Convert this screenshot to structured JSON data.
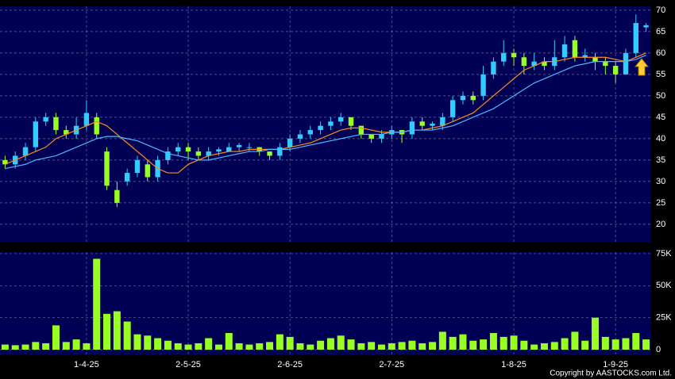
{
  "chart_data": {
    "type": "candlestick",
    "x": [
      null,
      null,
      null,
      null,
      null,
      null,
      null,
      null,
      "1-4-25",
      null,
      null,
      null,
      null,
      null,
      null,
      null,
      null,
      null,
      "2-5-25",
      null,
      null,
      null,
      null,
      null,
      null,
      null,
      null,
      null,
      "2-6-25",
      null,
      null,
      null,
      null,
      null,
      null,
      null,
      null,
      null,
      "2-7-25",
      null,
      null,
      null,
      null,
      null,
      null,
      null,
      null,
      null,
      null,
      null,
      "1-8-25",
      null,
      null,
      null,
      null,
      null,
      null,
      null,
      null,
      null,
      "1-9-25",
      null,
      null,
      null
    ],
    "open": [
      35,
      34,
      36,
      38,
      44,
      45,
      42,
      41,
      43,
      45,
      37,
      28,
      30,
      32,
      34,
      31,
      35,
      37,
      38,
      37,
      36,
      37,
      37,
      38,
      38,
      38,
      37,
      36,
      38,
      40,
      41,
      42,
      43,
      44,
      45,
      43,
      41,
      40,
      41,
      42,
      41,
      44,
      43,
      43,
      45,
      49,
      50,
      50,
      55,
      58,
      60,
      59,
      57,
      58,
      57,
      59,
      63,
      59,
      59,
      58,
      57,
      55,
      60,
      66
    ],
    "high": [
      36,
      37,
      39,
      45,
      46,
      46,
      43,
      45,
      49,
      46,
      38,
      30,
      33,
      36,
      35,
      36,
      38,
      39,
      39,
      38,
      38,
      38,
      39,
      39,
      39,
      38,
      37,
      39,
      41,
      42,
      43,
      44,
      45,
      46,
      45,
      43,
      41,
      42,
      43,
      42,
      45,
      45,
      44,
      46,
      50,
      51,
      51,
      57,
      59,
      63,
      61,
      60,
      60,
      59,
      63,
      64,
      64,
      61,
      60,
      59,
      58,
      61,
      69,
      67
    ],
    "low": [
      33,
      33,
      35,
      37,
      43,
      41,
      40,
      40,
      42,
      40,
      28,
      24,
      29,
      31,
      30,
      30,
      34,
      36,
      35,
      35,
      35,
      36,
      37,
      37,
      37,
      36,
      35,
      35,
      37,
      39,
      40,
      41,
      42,
      43,
      42,
      40,
      39,
      39,
      40,
      39,
      40,
      42,
      42,
      42,
      44,
      48,
      48,
      49,
      54,
      57,
      57,
      55,
      56,
      56,
      56,
      58,
      58,
      58,
      56,
      55,
      53,
      55,
      59,
      65
    ],
    "close": [
      34,
      36,
      38,
      44,
      45,
      42,
      41,
      43,
      46,
      41,
      29,
      25,
      32,
      35,
      31,
      35,
      37,
      38,
      37,
      36,
      37,
      37.5,
      38,
      38.5,
      38,
      37,
      36,
      38,
      40,
      41,
      42,
      43,
      44,
      45,
      43,
      41,
      40,
      41,
      42,
      41,
      44,
      43,
      43.5,
      45,
      49,
      50,
      49,
      55,
      58,
      60,
      59,
      57,
      58,
      57,
      59,
      62,
      59,
      59.5,
      58,
      57,
      55,
      60,
      67,
      66.5
    ],
    "up_color": "#33ccff",
    "down_color": "#99ff22",
    "moving_averages": [
      {
        "color": "#ff8c1a",
        "values": [
          34,
          35,
          36,
          37,
          38,
          40,
          41,
          42,
          43,
          44,
          43,
          41,
          39,
          37,
          35,
          33,
          32,
          32,
          34,
          35,
          36,
          36.5,
          37,
          37,
          37.5,
          37.5,
          37.5,
          37.5,
          38,
          38.5,
          39,
          40,
          41,
          42,
          42.5,
          42.5,
          42,
          41.5,
          41.5,
          41.5,
          42,
          42,
          42.5,
          43,
          44,
          45,
          46,
          48,
          50,
          52,
          54,
          56,
          57,
          58,
          58,
          58.5,
          59,
          59,
          59,
          59,
          58.5,
          58,
          59,
          60
        ]
      },
      {
        "color": "#4db8ff",
        "values": [
          33,
          33.5,
          34,
          35,
          35.5,
          36,
          37,
          38,
          39,
          40,
          40.5,
          40.5,
          40,
          39.5,
          38.5,
          37.5,
          36.5,
          36,
          35.5,
          35,
          35,
          35.5,
          36,
          36.5,
          37,
          37,
          37.5,
          37.5,
          37.5,
          38,
          38.5,
          39,
          39.5,
          40,
          40.5,
          41,
          41,
          41,
          41.5,
          41.5,
          42,
          42,
          42,
          42.5,
          43,
          44,
          45,
          46,
          47,
          48.5,
          50,
          51.5,
          53,
          54,
          55,
          56,
          57,
          57.5,
          58,
          58,
          58,
          58,
          58.5,
          59.5
        ]
      }
    ],
    "ylim": [
      15.9,
      70.9
    ],
    "yticks": [
      20,
      25,
      30,
      35,
      40,
      45,
      50,
      55,
      60,
      65,
      70
    ],
    "grid": true,
    "volume": {
      "color": "#99ff22",
      "values": [
        4000,
        3500,
        4000,
        6000,
        5000,
        19000,
        6000,
        8000,
        5000,
        71000,
        28000,
        30000,
        22000,
        12000,
        11000,
        9000,
        7000,
        5000,
        4000,
        5000,
        9000,
        4000,
        13000,
        5000,
        4000,
        5000,
        6000,
        12000,
        10000,
        5000,
        4000,
        7000,
        9000,
        11000,
        8000,
        5000,
        6000,
        4000,
        5000,
        6000,
        7000,
        5000,
        6000,
        14000,
        10000,
        12000,
        7000,
        8000,
        13000,
        10000,
        11000,
        7000,
        4000,
        5000,
        6000,
        9000,
        14000,
        7000,
        25000,
        10000,
        8000,
        9000,
        13000,
        8000
      ],
      "ylim": [
        -3700,
        76200
      ],
      "yticks": [
        0,
        {
          "value": 25000,
          "label": "25K"
        },
        {
          "value": 50000,
          "label": "50K"
        },
        {
          "value": 75000,
          "label": "75K"
        }
      ]
    }
  },
  "footer": "Copyright by AASTOCKS.com Ltd."
}
